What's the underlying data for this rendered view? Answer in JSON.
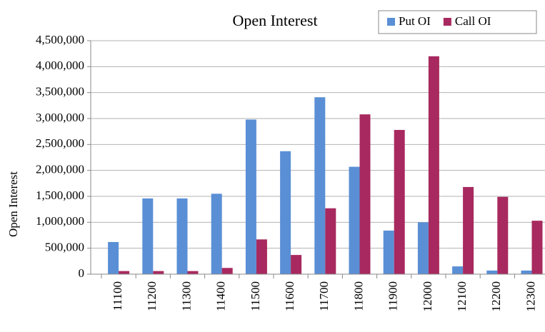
{
  "chart_data": {
    "type": "bar",
    "title": "Open Interest",
    "y_label": "Open Interest",
    "categories": [
      "11100",
      "11200",
      "11300",
      "11400",
      "11500",
      "11600",
      "11700",
      "11800",
      "11900",
      "12000",
      "12100",
      "12200",
      "12300"
    ],
    "series": [
      {
        "name": "Put OI",
        "color": "#5a8fd6",
        "values": [
          620000,
          1460000,
          1460000,
          1550000,
          2980000,
          2370000,
          3410000,
          2070000,
          840000,
          1000000,
          150000,
          70000,
          70000
        ]
      },
      {
        "name": "Call OI",
        "color": "#a8295f",
        "values": [
          60000,
          60000,
          60000,
          120000,
          670000,
          370000,
          1270000,
          3080000,
          2780000,
          4200000,
          1680000,
          1490000,
          1030000
        ]
      }
    ],
    "ylim": [
      0,
      4500000
    ],
    "yticks": [
      0,
      {
        "value": 500000,
        "label": "500,000"
      },
      {
        "value": 1000000,
        "label": "1,000,000"
      },
      {
        "value": 1500000,
        "label": "1,500,000"
      },
      {
        "value": 2000000,
        "label": "2,000,000"
      },
      {
        "value": 2500000,
        "label": "2,500,000"
      },
      {
        "value": 3000000,
        "label": "3,000,000"
      },
      {
        "value": 3500000,
        "label": "3,500,000"
      },
      {
        "value": 4000000,
        "label": "4,000,000"
      },
      {
        "value": 4500000,
        "label": "4,500,000"
      }
    ],
    "grid": true,
    "legend": "top-right"
  }
}
